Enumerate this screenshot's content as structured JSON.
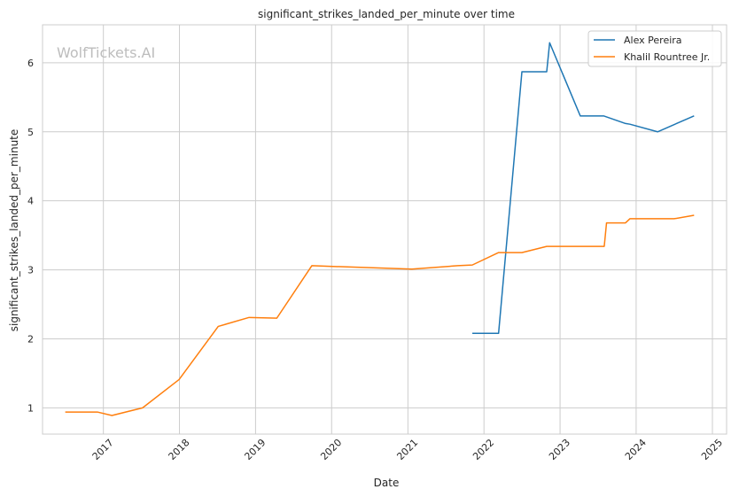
{
  "chart_data": {
    "type": "line",
    "title": "significant_strikes_landed_per_minute over time",
    "xlabel": "Date",
    "ylabel": "significant_strikes_landed_per_minute",
    "watermark": "WolfTickets.AI",
    "xlim": [
      "2016-03-15",
      "2025-03-10"
    ],
    "ylim": [
      0.62,
      6.55
    ],
    "x_ticks": [
      "2017-01-01",
      "2018-01-01",
      "2019-01-01",
      "2020-01-01",
      "2021-01-01",
      "2022-01-01",
      "2023-01-01",
      "2024-01-01",
      "2025-01-01"
    ],
    "x_tick_labels": [
      "2017",
      "2018",
      "2019",
      "2020",
      "2021",
      "2022",
      "2023",
      "2024",
      "2025"
    ],
    "y_ticks": [
      1,
      2,
      3,
      4,
      5,
      6
    ],
    "y_tick_labels": [
      "1",
      "2",
      "3",
      "4",
      "5",
      "6"
    ],
    "grid": true,
    "legend_position": "top-right",
    "series": [
      {
        "name": "Alex Pereira",
        "color": "#1f77b4",
        "points": [
          [
            "2021-11-06",
            2.08
          ],
          [
            "2022-03-12",
            2.08
          ],
          [
            "2022-07-02",
            5.87
          ],
          [
            "2022-10-29",
            5.87
          ],
          [
            "2022-11-12",
            6.29
          ],
          [
            "2023-04-08",
            5.23
          ],
          [
            "2023-07-29",
            5.23
          ],
          [
            "2023-11-11",
            5.12
          ],
          [
            "2023-12-02",
            5.11
          ],
          [
            "2024-04-13",
            5.0
          ],
          [
            "2024-10-05",
            5.23
          ]
        ]
      },
      {
        "name": "Khalil Rountree Jr.",
        "color": "#ff7f0e",
        "points": [
          [
            "2016-07-02",
            0.94
          ],
          [
            "2016-12-03",
            0.94
          ],
          [
            "2017-02-11",
            0.89
          ],
          [
            "2017-07-08",
            1.0
          ],
          [
            "2017-12-30",
            1.41
          ],
          [
            "2018-07-06",
            2.18
          ],
          [
            "2018-12-01",
            2.31
          ],
          [
            "2019-04-13",
            2.3
          ],
          [
            "2019-09-28",
            3.06
          ],
          [
            "2021-01-20",
            3.01
          ],
          [
            "2021-08-28",
            3.06
          ],
          [
            "2021-11-06",
            3.07
          ],
          [
            "2022-03-12",
            3.25
          ],
          [
            "2022-07-02",
            3.25
          ],
          [
            "2022-10-29",
            3.34
          ],
          [
            "2023-08-01",
            3.34
          ],
          [
            "2023-08-12",
            3.68
          ],
          [
            "2023-11-11",
            3.68
          ],
          [
            "2023-12-02",
            3.74
          ],
          [
            "2024-07-01",
            3.74
          ],
          [
            "2024-10-05",
            3.79
          ]
        ]
      }
    ]
  }
}
